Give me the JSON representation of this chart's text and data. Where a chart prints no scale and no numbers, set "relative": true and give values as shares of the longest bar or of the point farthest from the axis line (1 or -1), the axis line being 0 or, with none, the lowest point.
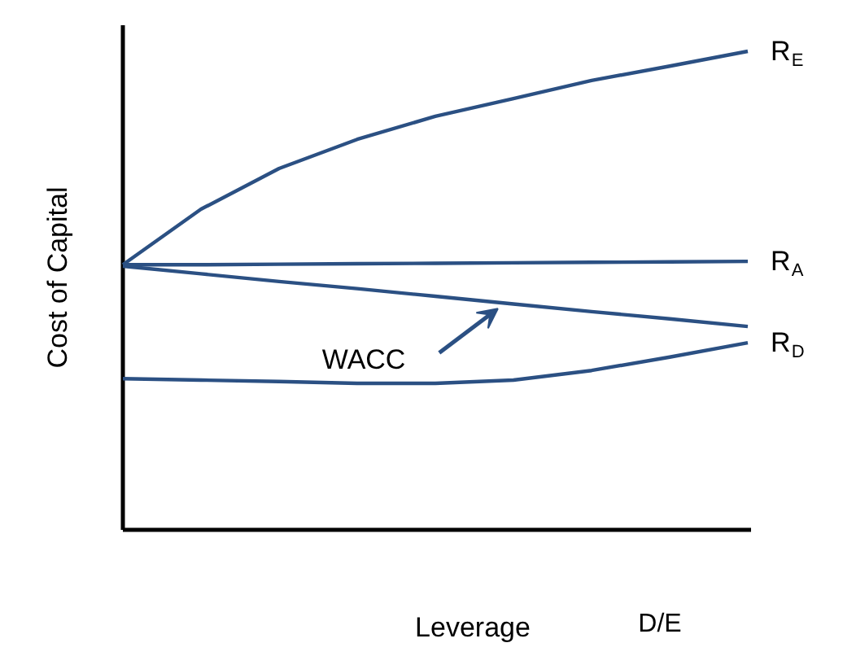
{
  "chart_data": {
    "type": "line",
    "relative": true,
    "xlabel": "Leverage",
    "ylabel": "Cost of Capital",
    "annotations": [
      "D/E",
      "WACC"
    ],
    "categories": [
      null,
      null,
      null,
      null,
      null,
      null,
      null,
      null,
      null
    ],
    "marker": "none",
    "line_style": "solid",
    "series": [
      {
        "name": "R$_{E}$",
        "color": "#2b5083",
        "values": [
          0.554,
          0.67,
          0.755,
          0.816,
          0.864,
          0.901,
          0.939,
          0.969,
          1.0
        ]
      },
      {
        "name": "R$_{A}$",
        "color": "#2b5083",
        "values": [
          0.554,
          0.554,
          0.555,
          0.556,
          0.557,
          0.558,
          0.559,
          0.56,
          0.561
        ]
      },
      {
        "color": "#2b5083",
        "values": [
          0.551,
          0.535,
          0.519,
          0.504,
          0.488,
          0.472,
          0.456,
          0.441,
          0.425
        ]
      },
      {
        "name": "R$_{D}$",
        "color": "#2b5083",
        "values": [
          0.316,
          0.313,
          0.31,
          0.306,
          0.306,
          0.313,
          0.333,
          0.361,
          0.391
        ]
      }
    ]
  }
}
